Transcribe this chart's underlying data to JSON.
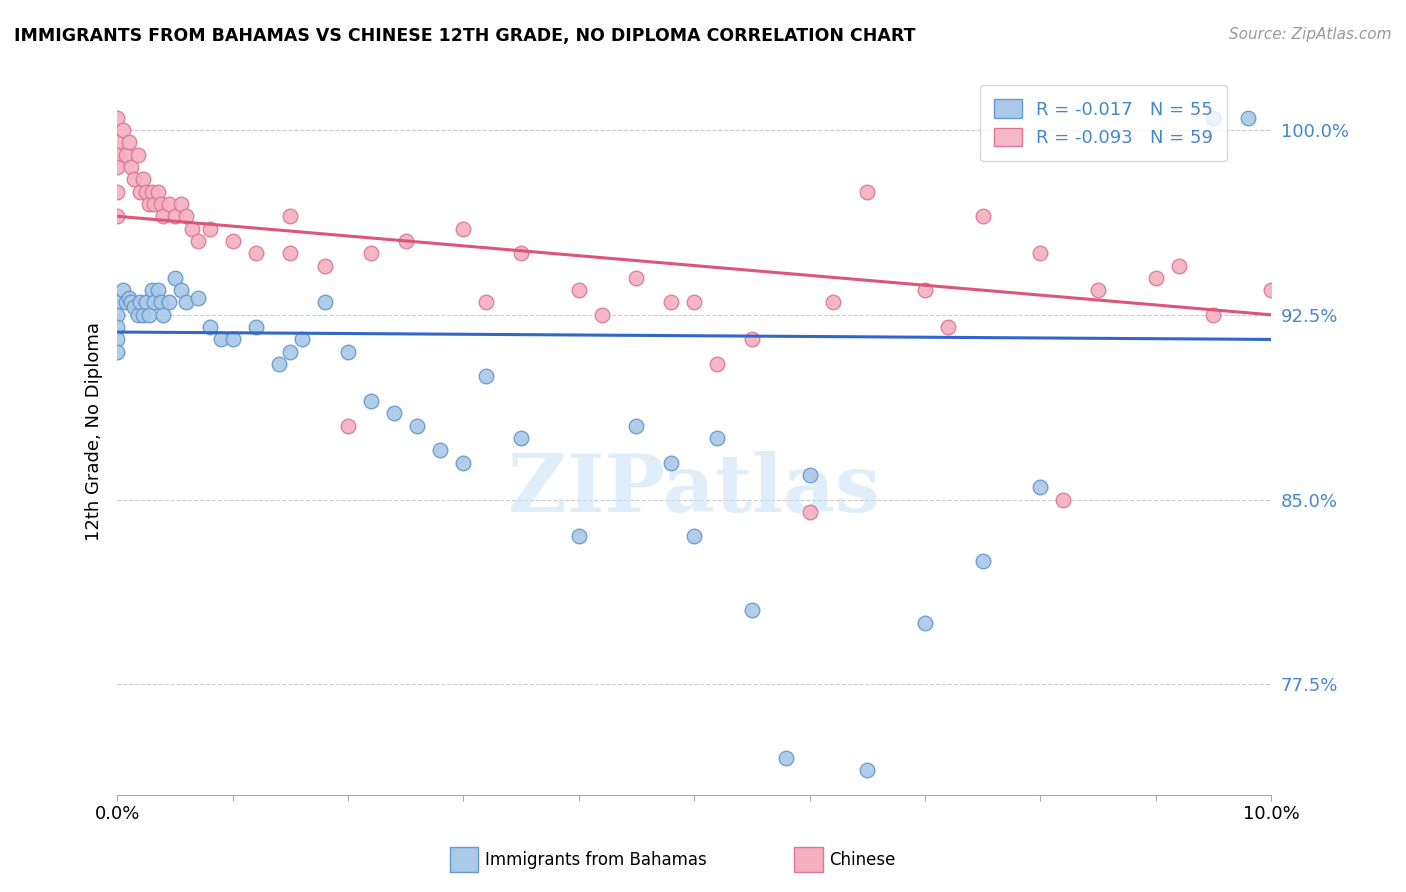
{
  "title": "IMMIGRANTS FROM BAHAMAS VS CHINESE 12TH GRADE, NO DIPLOMA CORRELATION CHART",
  "source": "Source: ZipAtlas.com",
  "ylabel": "12th Grade, No Diploma",
  "xlim": [
    0.0,
    10.0
  ],
  "ylim": [
    73.0,
    102.5
  ],
  "ytick_labels": [
    "77.5%",
    "85.0%",
    "92.5%",
    "100.0%"
  ],
  "ytick_values": [
    77.5,
    85.0,
    92.5,
    100.0
  ],
  "xtick_values": [
    0.0,
    1.0,
    2.0,
    3.0,
    4.0,
    5.0,
    6.0,
    7.0,
    8.0,
    9.0,
    10.0
  ],
  "xtick_labels": [
    "0.0%",
    "",
    "",
    "",
    "",
    "",
    "",
    "",
    "",
    "",
    "10.0%"
  ],
  "legend_entries": [
    {
      "label": "R = -0.017   N = 55",
      "color": "#aac8e8"
    },
    {
      "label": "R = -0.093   N = 59",
      "color": "#f4b8c8"
    }
  ],
  "series_bahamas": {
    "color": "#aac8e8",
    "edge_color": "#6699cc",
    "trend_color": "#3366cc",
    "trend_y0": 91.8,
    "trend_y1": 91.5,
    "x": [
      0.0,
      0.0,
      0.0,
      0.0,
      0.0,
      0.05,
      0.08,
      0.1,
      0.12,
      0.15,
      0.18,
      0.2,
      0.22,
      0.25,
      0.28,
      0.3,
      0.32,
      0.35,
      0.38,
      0.4,
      0.45,
      0.5,
      0.55,
      0.6,
      0.7,
      0.8,
      0.9,
      1.0,
      1.2,
      1.4,
      1.6,
      1.8,
      2.0,
      2.2,
      2.4,
      2.6,
      2.8,
      3.0,
      3.5,
      4.0,
      4.5,
      5.0,
      5.2,
      5.5,
      6.0,
      1.5,
      3.2,
      4.8,
      5.8,
      6.5,
      7.0,
      7.5,
      8.0,
      9.5,
      9.8
    ],
    "y": [
      93.0,
      92.5,
      92.0,
      91.5,
      91.0,
      93.5,
      93.0,
      93.2,
      93.0,
      92.8,
      92.5,
      93.0,
      92.5,
      93.0,
      92.5,
      93.5,
      93.0,
      93.5,
      93.0,
      92.5,
      93.0,
      94.0,
      93.5,
      93.0,
      93.2,
      92.0,
      91.5,
      91.5,
      92.0,
      90.5,
      91.5,
      93.0,
      91.0,
      89.0,
      88.5,
      88.0,
      87.0,
      86.5,
      87.5,
      83.5,
      88.0,
      83.5,
      87.5,
      80.5,
      86.0,
      91.0,
      90.0,
      86.5,
      74.5,
      74.0,
      80.0,
      82.5,
      85.5,
      100.5,
      100.5
    ]
  },
  "series_chinese": {
    "color": "#f4b0c0",
    "edge_color": "#dd7799",
    "trend_color": "#dd5577",
    "trend_y0": 96.5,
    "trend_y1": 92.5,
    "x": [
      0.0,
      0.0,
      0.0,
      0.0,
      0.0,
      0.0,
      0.05,
      0.08,
      0.1,
      0.12,
      0.15,
      0.18,
      0.2,
      0.22,
      0.25,
      0.28,
      0.3,
      0.32,
      0.35,
      0.38,
      0.4,
      0.45,
      0.5,
      0.55,
      0.6,
      0.65,
      0.7,
      0.8,
      1.0,
      1.2,
      1.5,
      1.8,
      2.2,
      2.5,
      3.0,
      3.5,
      4.0,
      4.5,
      5.0,
      5.5,
      6.0,
      6.5,
      7.0,
      7.5,
      8.0,
      8.5,
      9.0,
      9.2,
      10.0,
      2.0,
      3.2,
      4.2,
      5.2,
      6.2,
      7.2,
      8.2,
      9.5,
      1.5,
      4.8
    ],
    "y": [
      100.5,
      99.5,
      99.0,
      98.5,
      97.5,
      96.5,
      100.0,
      99.0,
      99.5,
      98.5,
      98.0,
      99.0,
      97.5,
      98.0,
      97.5,
      97.0,
      97.5,
      97.0,
      97.5,
      97.0,
      96.5,
      97.0,
      96.5,
      97.0,
      96.5,
      96.0,
      95.5,
      96.0,
      95.5,
      95.0,
      96.5,
      94.5,
      95.0,
      95.5,
      96.0,
      95.0,
      93.5,
      94.0,
      93.0,
      91.5,
      84.5,
      97.5,
      93.5,
      96.5,
      95.0,
      93.5,
      94.0,
      94.5,
      93.5,
      88.0,
      93.0,
      92.5,
      90.5,
      93.0,
      92.0,
      85.0,
      92.5,
      95.0,
      93.0
    ]
  },
  "watermark_text": "ZIPatlas",
  "background_color": "#ffffff",
  "grid_color": "#cccccc",
  "grid_style": "--"
}
